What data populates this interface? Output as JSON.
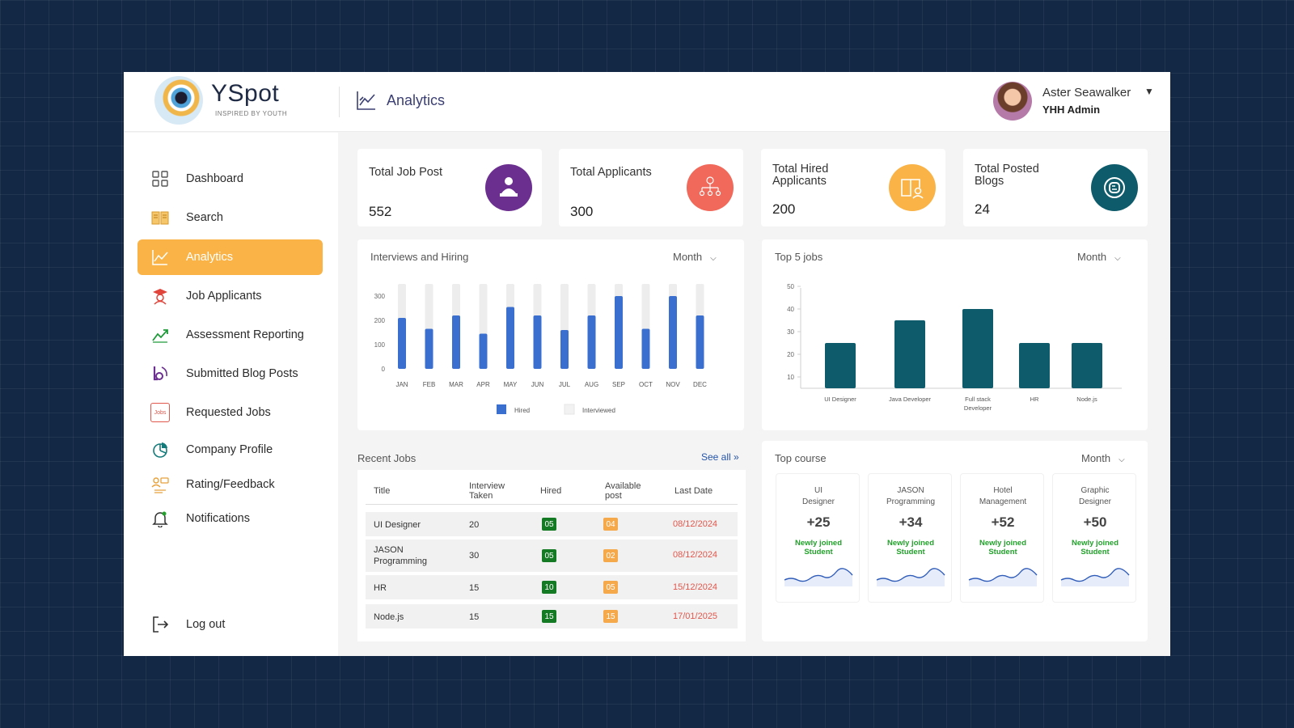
{
  "app": {
    "name": "YSpot",
    "tagline": "INSPIRED BY YOUTH"
  },
  "header": {
    "page_title": "Analytics",
    "user_name": "Aster Seawalker",
    "user_role": "YHH Admin"
  },
  "sidebar": {
    "items": [
      {
        "label": "Dashboard",
        "icon": "grid-icon"
      },
      {
        "label": "Search",
        "icon": "book-icon"
      },
      {
        "label": "Analytics",
        "icon": "analytics-icon",
        "active": true
      },
      {
        "label": "Job Applicants",
        "icon": "graduate-icon"
      },
      {
        "label": "Assessment Reporting",
        "icon": "trend-icon"
      },
      {
        "label": "Submitted Blog Posts",
        "icon": "blog-icon"
      },
      {
        "label": "Requested Jobs",
        "icon": "jobs-icon",
        "icon_text": "Jobs"
      },
      {
        "label": "Company Profile",
        "icon": "pie-icon"
      },
      {
        "label": "Rating/Feedback",
        "icon": "feedback-icon"
      },
      {
        "label": "Notifications",
        "icon": "bell-icon"
      }
    ],
    "logout": "Log out"
  },
  "stats": [
    {
      "title": "Total Job Post",
      "value": "552",
      "color": "#6b2f8f"
    },
    {
      "title": "Total Applicants",
      "value": "300",
      "color": "#f0695a"
    },
    {
      "title": "Total Hired Applicants",
      "value": "200",
      "color": "#f9b347"
    },
    {
      "title": "Total Posted Blogs",
      "value": "24",
      "color": "#0e5b6b"
    }
  ],
  "interviews_panel": {
    "title": "Interviews and Hiring",
    "filter": "Month"
  },
  "top_jobs_panel": {
    "title": "Top 5 jobs",
    "filter": "Month"
  },
  "chart_data": [
    {
      "type": "bar",
      "title": "Interviews and Hiring",
      "categories": [
        "JAN",
        "FEB",
        "MAR",
        "APR",
        "MAY",
        "JUN",
        "JUL",
        "AUG",
        "SEP",
        "OCT",
        "NOV",
        "DEC"
      ],
      "series": [
        {
          "name": "Hired",
          "color": "#3a6fd0",
          "values": [
            210,
            165,
            220,
            145,
            255,
            220,
            160,
            220,
            300,
            165,
            300,
            220
          ]
        },
        {
          "name": "Interviewed",
          "color": "#ededed",
          "values": [
            350,
            350,
            350,
            350,
            350,
            350,
            350,
            350,
            350,
            350,
            350,
            350
          ]
        }
      ],
      "yticks": [
        0,
        100,
        200,
        300
      ],
      "ylim": [
        0,
        350
      ],
      "legend": "bottom"
    },
    {
      "type": "bar",
      "title": "Top 5 jobs",
      "categories": [
        "UI Designer",
        "Java Developer",
        "Full stack Developer",
        "HR",
        "Node.js"
      ],
      "series": [
        {
          "values": [
            25,
            35,
            40,
            25,
            25
          ],
          "color": "#0e5b6b"
        }
      ],
      "yticks": [
        10,
        20,
        30,
        40,
        50
      ],
      "ylim": [
        5,
        50
      ]
    }
  ],
  "recent_jobs": {
    "title": "Recent Jobs",
    "see_all": "See all",
    "columns": [
      "Title",
      "Interview Taken",
      "Hired",
      "Available post",
      "Last Date"
    ],
    "rows": [
      {
        "title": "UI Designer",
        "interview": "20",
        "hired": "05",
        "available": "04",
        "last_date": "08/12/2024"
      },
      {
        "title": "JASON Programming",
        "interview": "30",
        "hired": "05",
        "available": "02",
        "last_date": "08/12/2024"
      },
      {
        "title": "HR",
        "interview": "15",
        "hired": "10",
        "available": "05",
        "last_date": "15/12/2024"
      },
      {
        "title": "Node.js",
        "interview": "15",
        "hired": "15",
        "available": "15",
        "last_date": "17/01/2025"
      }
    ]
  },
  "top_course": {
    "title": "Top course",
    "filter": "Month",
    "items": [
      {
        "name": "UI Designer",
        "count": "+25",
        "note": "Newly joined Student"
      },
      {
        "name": "JASON Programming",
        "count": "+34",
        "note": "Newly joined Student"
      },
      {
        "name": "Hotel Management",
        "count": "+52",
        "note": "Newly joined Student"
      },
      {
        "name": "Graphic Designer",
        "count": "+50",
        "note": "Newly joined Student"
      }
    ]
  }
}
